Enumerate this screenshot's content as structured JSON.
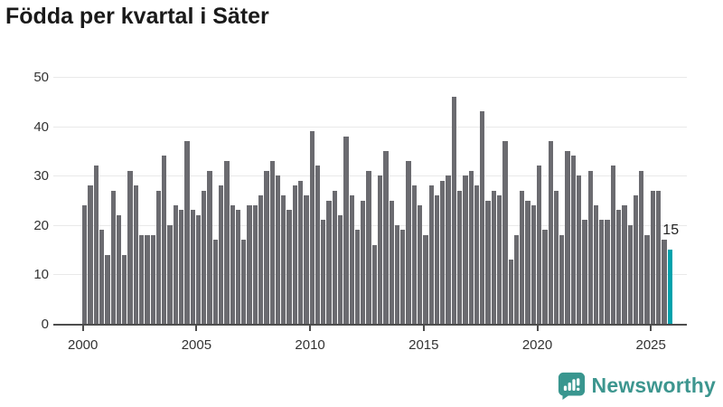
{
  "title": "Födda per kvartal i Säter",
  "annotation": {
    "label": "15"
  },
  "footer": {
    "brand": "Newsworthy"
  },
  "chart_data": {
    "type": "bar",
    "title": "Födda per kvartal i Säter",
    "start_period": "2000Q1",
    "end_period": "2025Q4",
    "frequency": "quarterly",
    "values": [
      24,
      28,
      32,
      19,
      14,
      27,
      22,
      14,
      31,
      28,
      18,
      18,
      18,
      27,
      34,
      20,
      24,
      23,
      37,
      23,
      22,
      27,
      31,
      17,
      28,
      33,
      24,
      23,
      17,
      24,
      24,
      26,
      31,
      33,
      30,
      26,
      23,
      28,
      29,
      26,
      39,
      32,
      21,
      25,
      27,
      22,
      38,
      26,
      19,
      25,
      31,
      16,
      30,
      35,
      25,
      20,
      19,
      33,
      28,
      24,
      18,
      28,
      26,
      29,
      30,
      46,
      27,
      30,
      31,
      28,
      43,
      25,
      27,
      26,
      37,
      13,
      18,
      27,
      25,
      24,
      32,
      19,
      37,
      27,
      18,
      35,
      34,
      30,
      21,
      31,
      24,
      21,
      21,
      32,
      23,
      24,
      20,
      26,
      31,
      18,
      27,
      27,
      17,
      15
    ],
    "highlight_index": 103,
    "highlight_value": 15,
    "x_tick_years": [
      2000,
      2005,
      2010,
      2015,
      2020,
      2025
    ],
    "x_tick_labels": [
      "2000",
      "2005",
      "2010",
      "2015",
      "2020",
      "2025"
    ],
    "y_ticks": [
      0,
      10,
      20,
      30,
      40,
      50
    ],
    "ylim": [
      0,
      50
    ],
    "grid": "horizontal",
    "legend": "none",
    "colors": {
      "bar": "#6b6b70",
      "highlight": "#00a2ac",
      "grid": "#e9e9e9",
      "axis": "#4d4d4d",
      "title": "#1a1a1a",
      "tick_text": "#333333",
      "logo": "#3d968f"
    }
  }
}
